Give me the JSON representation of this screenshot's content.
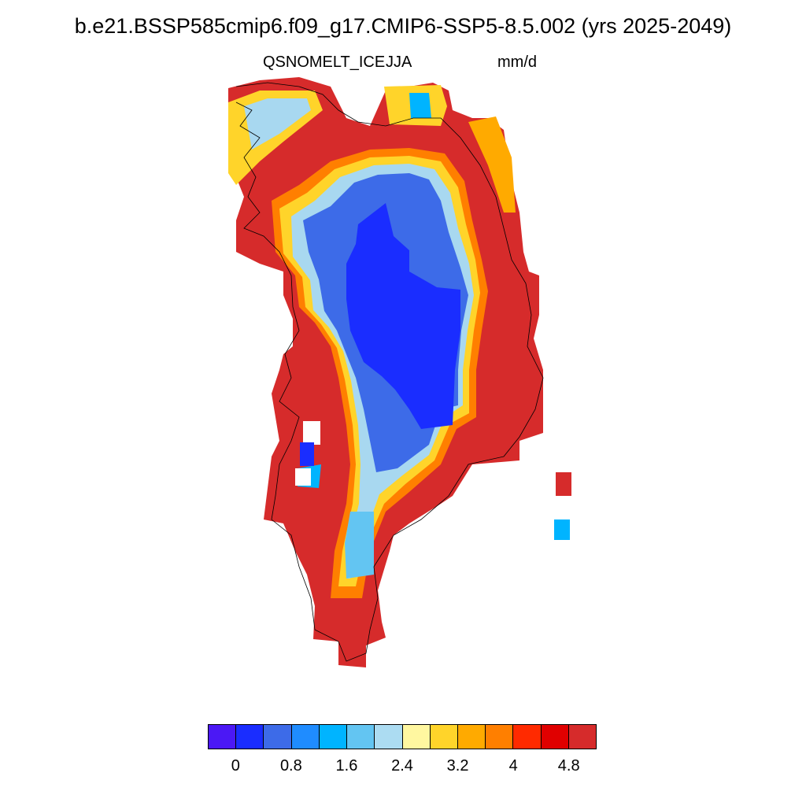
{
  "title": "b.e21.BSSP585cmip6.f09_g17.CMIP6-SSP5-8.5.002 (yrs 2025-2049)",
  "subtitle_left": "QSNOMELT_ICE",
  "subtitle_center": "JJA",
  "subtitle_right": "mm/d",
  "map": {
    "region": "Greenland",
    "colors": {
      "land_high": "#d62b2b",
      "coast_orange": "#ff7f00",
      "coast_yellow": "#ffd42a",
      "interior_blue": "#1a2dff",
      "mid_blue": "#3d6be8",
      "light_blue": "#a8d8f0",
      "coastline": "#000000"
    }
  },
  "colorbar": {
    "colors": [
      "#4b18f5",
      "#1a2dff",
      "#3d6be8",
      "#1f8cff",
      "#00b4ff",
      "#63c5f2",
      "#acdcf2",
      "#fff7a0",
      "#ffd42a",
      "#ffaa00",
      "#ff7f00",
      "#ff2a00",
      "#e00000",
      "#d62b2b"
    ],
    "tick_labels": [
      "0",
      "0.8",
      "1.6",
      "2.4",
      "3.2",
      "4",
      "4.8"
    ]
  }
}
